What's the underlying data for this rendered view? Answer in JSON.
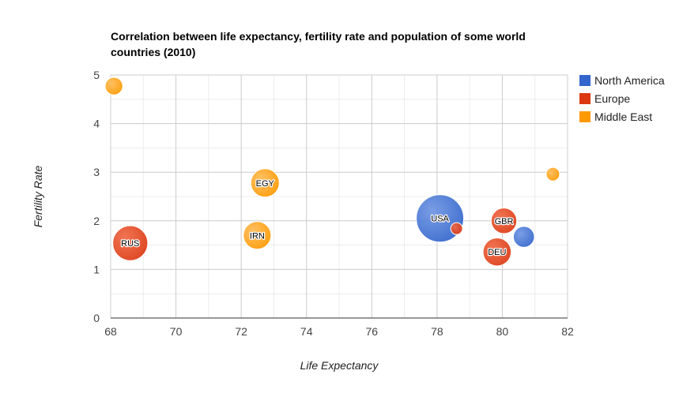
{
  "chart_data": {
    "type": "bubble",
    "title_lines": [
      "Correlation between life expectancy, fertility rate and population of some world",
      "countries (2010)"
    ],
    "xlabel": "Life Expectancy",
    "ylabel": "Fertility Rate",
    "xlim": [
      68,
      82
    ],
    "ylim": [
      0,
      5
    ],
    "x_ticks": [
      "68",
      "70",
      "72",
      "74",
      "76",
      "78",
      "80",
      "82"
    ],
    "y_ticks": [
      "0",
      "1",
      "2",
      "3",
      "4",
      "5"
    ],
    "grid": true,
    "legend_position": "right",
    "series": [
      {
        "name": "North America",
        "color": "#3366cc"
      },
      {
        "name": "Europe",
        "color": "#dc3912"
      },
      {
        "name": "Middle East",
        "color": "#ff9900"
      }
    ],
    "points": [
      {
        "label": "",
        "x": 68.1,
        "y": 4.77,
        "series": "Middle East",
        "size": 0.06
      },
      {
        "label": "RUS",
        "x": 68.6,
        "y": 1.54,
        "series": "Europe",
        "size": 0.47
      },
      {
        "label": "EGY",
        "x": 72.73,
        "y": 2.78,
        "series": "Middle East",
        "size": 0.27
      },
      {
        "label": "IRN",
        "x": 72.49,
        "y": 1.7,
        "series": "Middle East",
        "size": 0.25
      },
      {
        "label": "USA",
        "x": 78.09,
        "y": 2.05,
        "series": "North America",
        "size": 1.0
      },
      {
        "label": "",
        "x": 78.6,
        "y": 1.84,
        "series": "Europe",
        "size": 0.01
      },
      {
        "label": "GBR",
        "x": 80.05,
        "y": 2.0,
        "series": "Europe",
        "size": 0.2
      },
      {
        "label": "DEU",
        "x": 79.84,
        "y": 1.36,
        "series": "Europe",
        "size": 0.26
      },
      {
        "label": "",
        "x": 80.66,
        "y": 1.67,
        "series": "North America",
        "size": 0.11
      },
      {
        "label": "",
        "x": 81.55,
        "y": 2.96,
        "series": "Middle East",
        "size": 0.02
      }
    ]
  }
}
